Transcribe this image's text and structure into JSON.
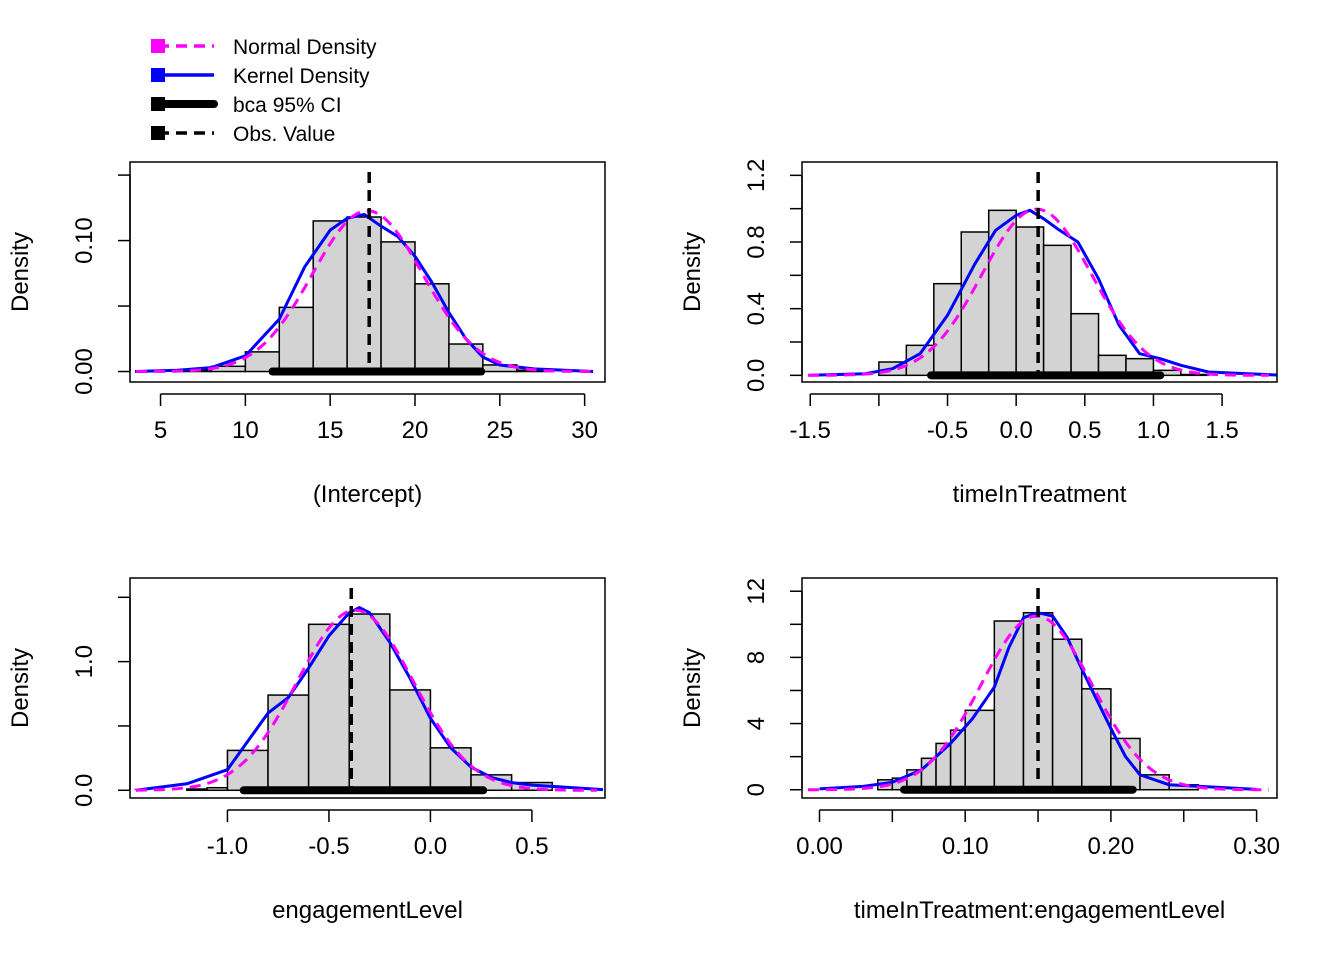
{
  "colors": {
    "bar_fill": "#d3d3d3",
    "bar_stroke": "#000000",
    "normal": "#ff00ff",
    "kernel": "#0000ff",
    "ci": "#000000",
    "obs": "#000000"
  },
  "legend": {
    "items": [
      {
        "label": "Normal Density",
        "color": "#ff00ff",
        "style": "dashed"
      },
      {
        "label": "Kernel Density",
        "color": "#0000ff",
        "style": "solid"
      },
      {
        "label": "bca 95% CI",
        "color": "#000000",
        "style": "thick"
      },
      {
        "label": "Obs. Value",
        "color": "#000000",
        "style": "dashed"
      }
    ]
  },
  "chart_data": [
    {
      "type": "histogram",
      "xlabel": "(Intercept)",
      "ylabel": "Density",
      "xlim": [
        3.2,
        31.2
      ],
      "ylim": [
        -0.008,
        0.16
      ],
      "xticks": [
        5,
        10,
        15,
        20,
        25,
        30
      ],
      "xtick_labels": [
        "5",
        "10",
        "15",
        "20",
        "25",
        "30"
      ],
      "yticks": [
        0,
        0.05,
        0.1,
        0.15
      ],
      "ytick_labels": [
        "0.00",
        "",
        "0.10",
        ""
      ],
      "bins": [
        [
          6,
          8,
          0.001
        ],
        [
          8,
          10,
          0.004
        ],
        [
          10,
          12,
          0.015
        ],
        [
          12,
          14,
          0.049
        ],
        [
          14,
          16,
          0.115
        ],
        [
          16,
          18,
          0.118
        ],
        [
          18,
          20,
          0.099
        ],
        [
          20,
          22,
          0.067
        ],
        [
          22,
          24,
          0.021
        ],
        [
          24,
          26,
          0.005
        ],
        [
          26,
          28,
          0.001
        ]
      ],
      "normal": {
        "mean": 17.2,
        "sd": 3.25
      },
      "kernel": [
        [
          3.5,
          0
        ],
        [
          6,
          0.001
        ],
        [
          8,
          0.003
        ],
        [
          10,
          0.012
        ],
        [
          12,
          0.04
        ],
        [
          13.5,
          0.08
        ],
        [
          15,
          0.108
        ],
        [
          16,
          0.117
        ],
        [
          17,
          0.12
        ],
        [
          18,
          0.111
        ],
        [
          19,
          0.103
        ],
        [
          20,
          0.088
        ],
        [
          21,
          0.068
        ],
        [
          22,
          0.045
        ],
        [
          23,
          0.025
        ],
        [
          24,
          0.011
        ],
        [
          25,
          0.005
        ],
        [
          27,
          0.002
        ],
        [
          30.5,
          0
        ]
      ],
      "ci": [
        11.6,
        23.9
      ],
      "obs": 17.3
    },
    {
      "type": "histogram",
      "xlabel": "timeInTreatment",
      "ylabel": "Density",
      "xlim": [
        -1.56,
        1.9
      ],
      "ylim": [
        -0.04,
        1.28
      ],
      "xticks": [
        -1.5,
        -1.0,
        -0.5,
        0.0,
        0.5,
        1.0,
        1.5
      ],
      "xtick_labels": [
        "-1.5",
        "",
        "-0.5",
        "0.0",
        "0.5",
        "1.0",
        "1.5"
      ],
      "yticks": [
        0,
        0.2,
        0.4,
        0.6,
        0.8,
        1.0,
        1.2
      ],
      "ytick_labels": [
        "0.0",
        "",
        "0.4",
        "",
        "0.8",
        "",
        "1.2"
      ],
      "bins": [
        [
          -1.0,
          -0.8,
          0.08
        ],
        [
          -0.8,
          -0.6,
          0.18
        ],
        [
          -0.6,
          -0.4,
          0.55
        ],
        [
          -0.4,
          -0.2,
          0.86
        ],
        [
          -0.2,
          0.0,
          0.99
        ],
        [
          0.0,
          0.2,
          0.89
        ],
        [
          0.2,
          0.4,
          0.78
        ],
        [
          0.4,
          0.6,
          0.37
        ],
        [
          0.6,
          0.8,
          0.12
        ],
        [
          0.8,
          1.0,
          0.1
        ],
        [
          1.0,
          1.2,
          0.03
        ],
        [
          1.2,
          1.4,
          0.005
        ]
      ],
      "normal": {
        "mean": 0.15,
        "sd": 0.4
      },
      "kernel": [
        [
          -1.5,
          0
        ],
        [
          -1.1,
          0.01
        ],
        [
          -0.9,
          0.04
        ],
        [
          -0.7,
          0.13
        ],
        [
          -0.5,
          0.36
        ],
        [
          -0.3,
          0.67
        ],
        [
          -0.15,
          0.87
        ],
        [
          0.0,
          0.96
        ],
        [
          0.1,
          0.99
        ],
        [
          0.2,
          0.94
        ],
        [
          0.3,
          0.88
        ],
        [
          0.45,
          0.8
        ],
        [
          0.6,
          0.58
        ],
        [
          0.75,
          0.3
        ],
        [
          0.9,
          0.13
        ],
        [
          1.05,
          0.1
        ],
        [
          1.2,
          0.06
        ],
        [
          1.4,
          0.02
        ],
        [
          1.9,
          0.002
        ]
      ],
      "ci": [
        -0.62,
        1.05
      ],
      "obs": 0.16
    },
    {
      "type": "histogram",
      "xlabel": "engagementLevel",
      "ylabel": "Density",
      "xlim": [
        -1.48,
        0.86
      ],
      "ylim": [
        -0.06,
        1.65
      ],
      "xticks": [
        -1.0,
        -0.5,
        0.0,
        0.5
      ],
      "xtick_labels": [
        "-1.0",
        "-0.5",
        "0.0",
        "0.5"
      ],
      "yticks": [
        0,
        0.5,
        1.0,
        1.5
      ],
      "ytick_labels": [
        "0.0",
        "",
        "1.0",
        ""
      ],
      "bins": [
        [
          -1.2,
          -1.1,
          0.01
        ],
        [
          -1.1,
          -1.0,
          0.02
        ],
        [
          -1.0,
          -0.8,
          0.31
        ],
        [
          -0.8,
          -0.6,
          0.74
        ],
        [
          -0.6,
          -0.4,
          1.29
        ],
        [
          -0.4,
          -0.2,
          1.37
        ],
        [
          -0.2,
          0.0,
          0.78
        ],
        [
          0.0,
          0.2,
          0.33
        ],
        [
          0.2,
          0.4,
          0.12
        ],
        [
          0.4,
          0.6,
          0.06
        ]
      ],
      "normal": {
        "mean": -0.37,
        "sd": 0.285
      },
      "kernel": [
        [
          -1.45,
          0
        ],
        [
          -1.2,
          0.05
        ],
        [
          -1.0,
          0.16
        ],
        [
          -0.9,
          0.38
        ],
        [
          -0.8,
          0.6
        ],
        [
          -0.7,
          0.72
        ],
        [
          -0.6,
          0.95
        ],
        [
          -0.5,
          1.2
        ],
        [
          -0.4,
          1.38
        ],
        [
          -0.35,
          1.42
        ],
        [
          -0.3,
          1.38
        ],
        [
          -0.2,
          1.15
        ],
        [
          -0.1,
          0.87
        ],
        [
          0.0,
          0.56
        ],
        [
          0.1,
          0.33
        ],
        [
          0.2,
          0.18
        ],
        [
          0.3,
          0.1
        ],
        [
          0.4,
          0.06
        ],
        [
          0.5,
          0.04
        ],
        [
          0.6,
          0.03
        ],
        [
          0.85,
          0.005
        ]
      ],
      "ci": [
        -0.92,
        0.26
      ],
      "obs": -0.39
    },
    {
      "type": "histogram",
      "xlabel": "timeInTreatment:engagementLevel",
      "ylabel": "Density",
      "xlim": [
        -0.012,
        0.314
      ],
      "ylim": [
        -0.5,
        12.8
      ],
      "xticks": [
        0.0,
        0.05,
        0.1,
        0.15,
        0.2,
        0.25,
        0.3
      ],
      "xtick_labels": [
        "0.00",
        "",
        "0.10",
        "",
        "0.20",
        "",
        "0.30"
      ],
      "yticks": [
        0,
        2,
        4,
        6,
        8,
        10,
        12
      ],
      "ytick_labels": [
        "0",
        "",
        "4",
        "",
        "8",
        "",
        "12"
      ],
      "bins": [
        [
          0.04,
          0.05,
          0.6
        ],
        [
          0.05,
          0.06,
          0.7
        ],
        [
          0.06,
          0.07,
          1.2
        ],
        [
          0.07,
          0.08,
          1.9
        ],
        [
          0.08,
          0.09,
          2.8
        ],
        [
          0.09,
          0.1,
          3.6
        ],
        [
          0.1,
          0.12,
          4.8
        ],
        [
          0.12,
          0.14,
          10.2
        ],
        [
          0.14,
          0.16,
          10.7
        ],
        [
          0.16,
          0.18,
          9.1
        ],
        [
          0.18,
          0.2,
          6.1
        ],
        [
          0.2,
          0.22,
          3.1
        ],
        [
          0.22,
          0.24,
          0.9
        ],
        [
          0.24,
          0.26,
          0.3
        ]
      ],
      "normal": {
        "mean": 0.149,
        "sd": 0.038
      },
      "kernel": [
        [
          0.0,
          0.05
        ],
        [
          0.03,
          0.2
        ],
        [
          0.05,
          0.45
        ],
        [
          0.07,
          1.2
        ],
        [
          0.09,
          2.8
        ],
        [
          0.105,
          4.3
        ],
        [
          0.12,
          6.2
        ],
        [
          0.13,
          8.6
        ],
        [
          0.14,
          10.4
        ],
        [
          0.15,
          10.7
        ],
        [
          0.16,
          10.5
        ],
        [
          0.17,
          9.2
        ],
        [
          0.18,
          7.3
        ],
        [
          0.19,
          5.5
        ],
        [
          0.2,
          3.7
        ],
        [
          0.21,
          2.0
        ],
        [
          0.22,
          0.9
        ],
        [
          0.24,
          0.3
        ],
        [
          0.3,
          0.02
        ]
      ],
      "ci": [
        0.058,
        0.215
      ],
      "obs": 0.15
    }
  ]
}
